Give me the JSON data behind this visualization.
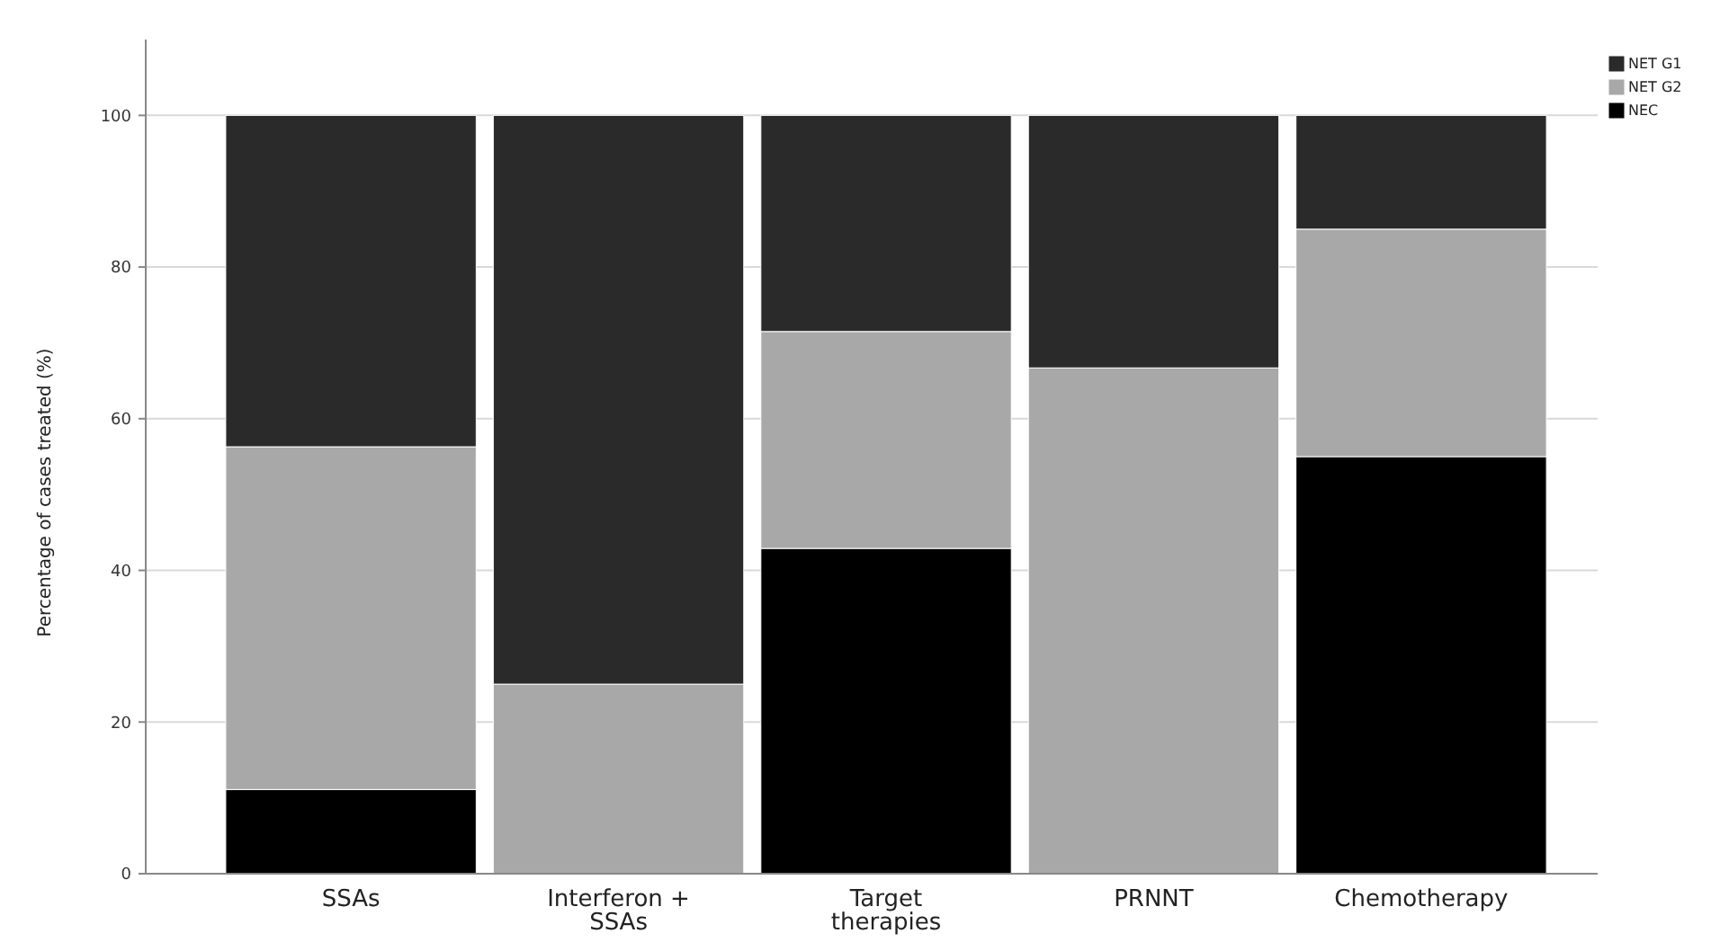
{
  "chart_data": {
    "type": "bar",
    "stacked": true,
    "ylabel": "Percentage of cases  treated (%)",
    "categories": [
      "SSAs",
      "Interferon + SSAs",
      "Target therapies",
      "PRNNT",
      "Chemotherapy"
    ],
    "series": [
      {
        "name": "NEC",
        "color": "#000000",
        "values": [
          11.1,
          0,
          42.9,
          0,
          55
        ]
      },
      {
        "name": "NET G2",
        "color": "#a8a8a8",
        "values": [
          45.2,
          25,
          28.6,
          66.7,
          30
        ]
      },
      {
        "name": "NET G1",
        "color": "#2a2a2a",
        "values": [
          43.7,
          75,
          28.5,
          33.3,
          15
        ]
      }
    ],
    "ylim": [
      0,
      110
    ],
    "yticks": [
      0,
      20,
      40,
      60,
      80,
      100
    ],
    "grid": "y",
    "legend": "top right"
  }
}
